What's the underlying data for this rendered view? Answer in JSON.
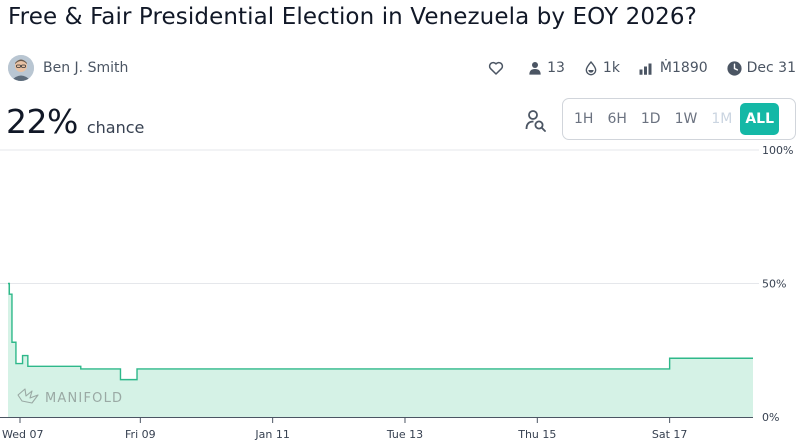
{
  "market": {
    "title": "Free & Fair Presidential Election in Venezuela by EOY 2026?"
  },
  "author": {
    "name": "Ben J. Smith"
  },
  "stats": {
    "traders": "13",
    "volume": "1k",
    "liquidity": "Ṁ1890",
    "close_date": "Dec 31"
  },
  "probability": {
    "value": "22%",
    "label": "chance"
  },
  "time_range": {
    "options": [
      {
        "label": "1H",
        "state": "normal"
      },
      {
        "label": "6H",
        "state": "normal"
      },
      {
        "label": "1D",
        "state": "normal"
      },
      {
        "label": "1W",
        "state": "normal"
      },
      {
        "label": "1M",
        "state": "disabled"
      },
      {
        "label": "ALL",
        "state": "active"
      }
    ]
  },
  "colors": {
    "accent": "#14b8a6",
    "line": "#2eb88a",
    "fill": "#d5f2e6",
    "grid": "#e5e7eb"
  },
  "watermark": "MANIFOLD",
  "chart_data": {
    "type": "area",
    "title": "",
    "xlabel": "",
    "ylabel": "",
    "ylim": [
      0,
      100
    ],
    "y_ticks": [
      "100%",
      "50%",
      "0%"
    ],
    "y_tick_values": [
      100,
      50,
      0
    ],
    "x_tick_labels": [
      "Wed 07",
      "Fri 09",
      "Jan 11",
      "Tue 13",
      "Thu 15",
      "Sat 17"
    ],
    "x_tick_values": [
      0,
      2,
      4,
      6,
      8,
      10
    ],
    "x_end": 11.26,
    "series": [
      {
        "values_x": [
          0,
          0.02,
          0.06,
          0.12,
          0.22,
          0.3,
          0.38,
          1.1,
          1.7,
          1.95,
          10.0,
          11.26
        ],
        "values_y": [
          50,
          46,
          28,
          20,
          23,
          19,
          19,
          18,
          14,
          18,
          22,
          22
        ]
      }
    ]
  }
}
